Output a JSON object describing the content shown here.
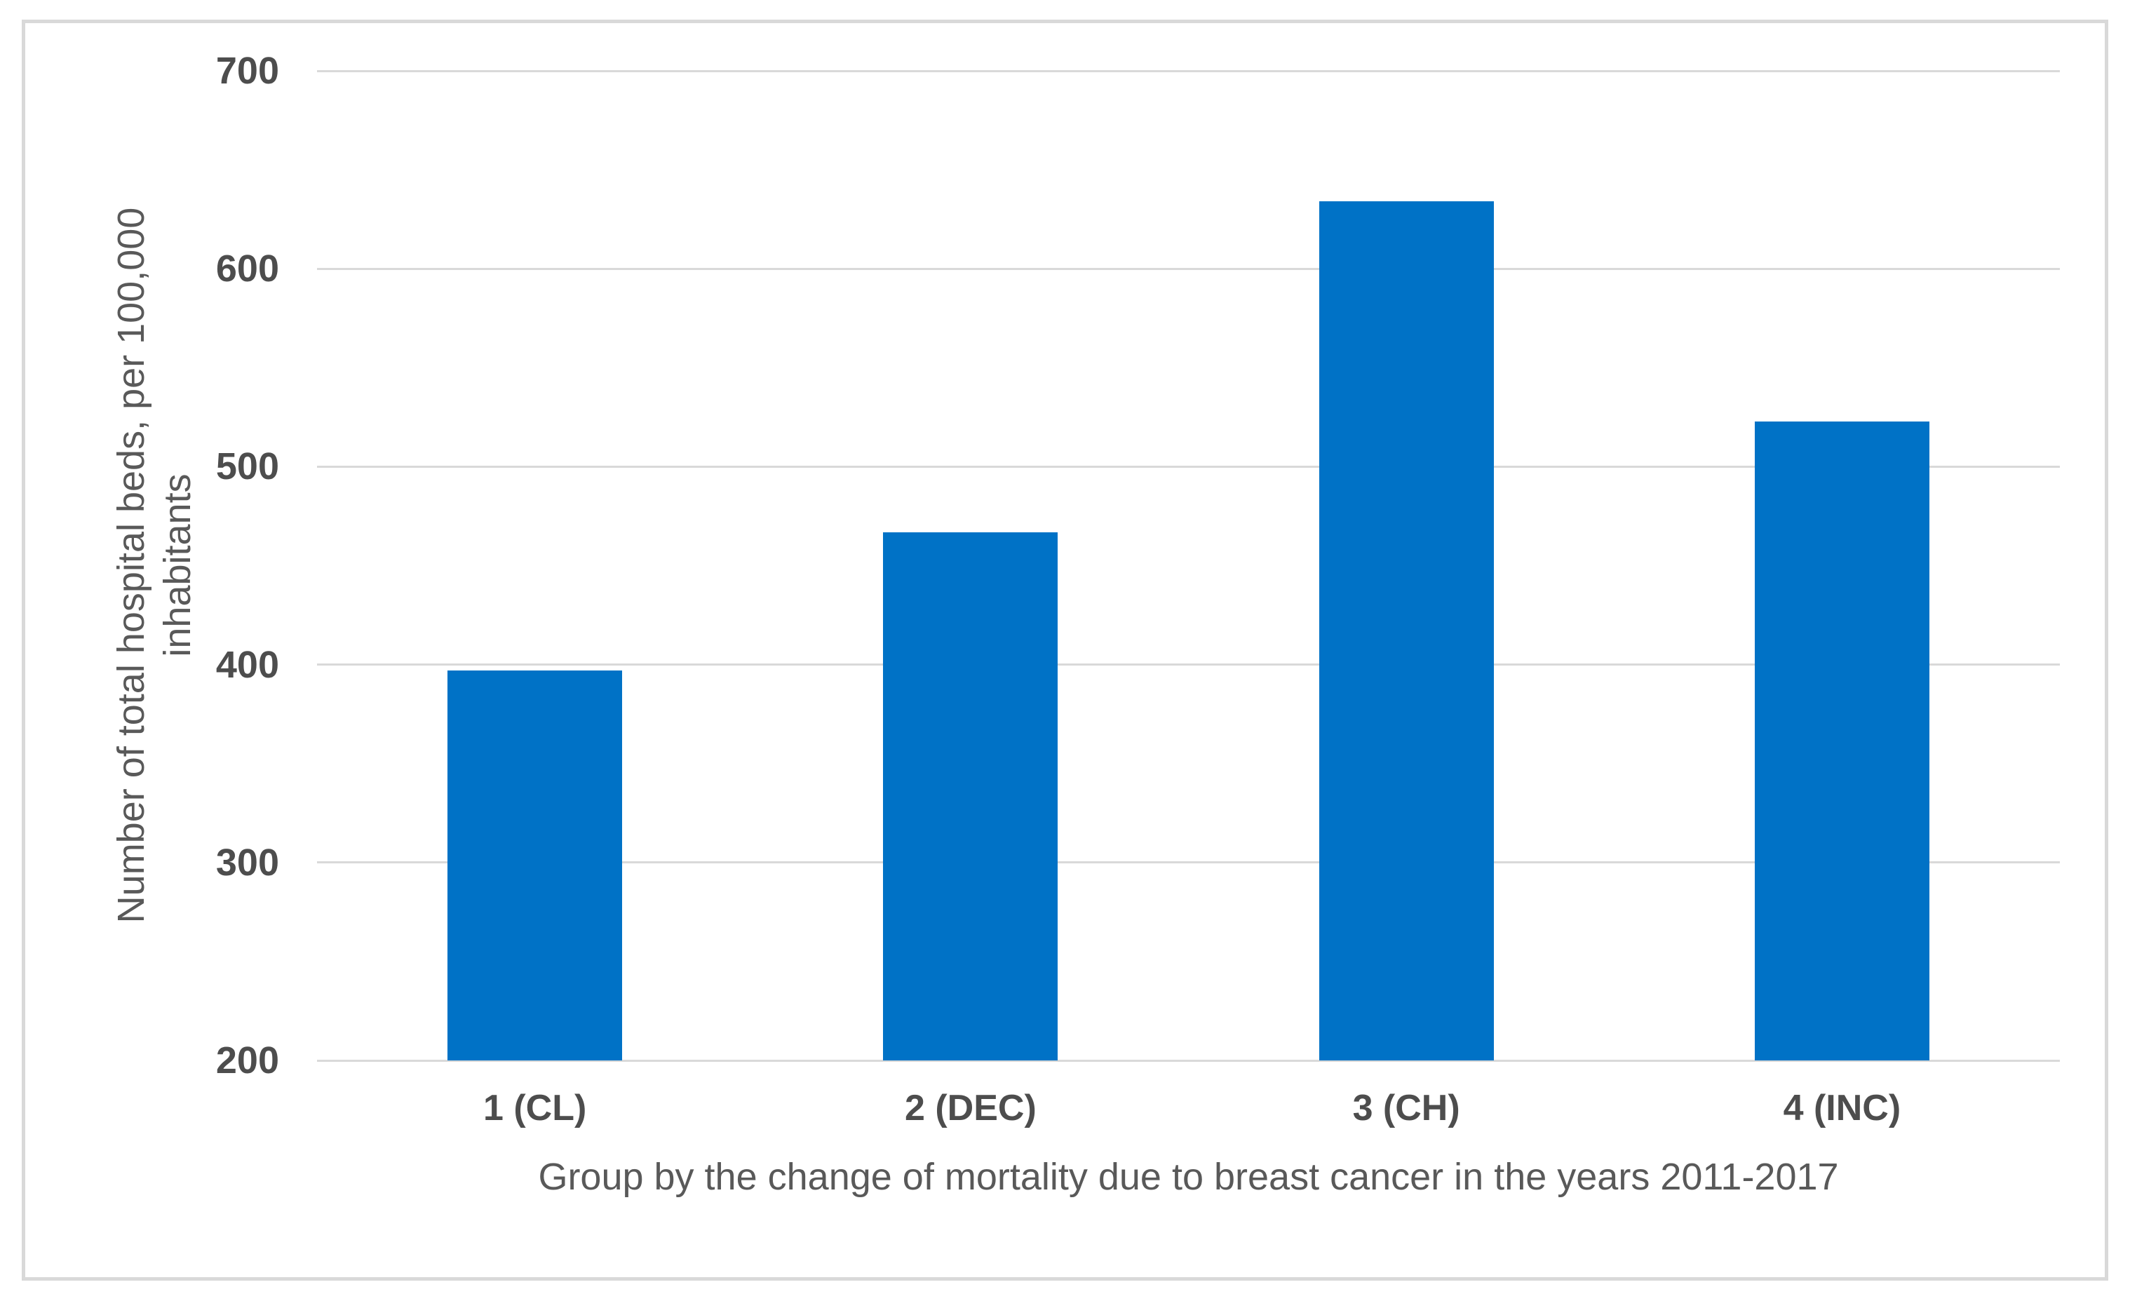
{
  "chart_data": {
    "type": "bar",
    "categories": [
      "1 (CL)",
      "2 (DEC)",
      "3 (CH)",
      "4 (INC)"
    ],
    "values": [
      397,
      467,
      634,
      523
    ],
    "title": "",
    "xlabel": "Group by the change of mortality due to breast cancer in the years 2011-2017",
    "ylabel": "Number of total hospital beds, per 100,000 inhabitants",
    "ylabel_lines": [
      "Number of total hospital beds, per 100,000",
      "inhabitants"
    ],
    "ylim": [
      200,
      700
    ],
    "yticks": [
      200,
      300,
      400,
      500,
      600,
      700
    ],
    "ytick_interval": 100,
    "grid": true,
    "legend": false,
    "colors": {
      "bar": "#0072C6",
      "gridline": "#D9D9D9",
      "frame_border": "#D9D9D9",
      "tick_text": "#4D4D4D",
      "title_text": "#595959"
    }
  }
}
